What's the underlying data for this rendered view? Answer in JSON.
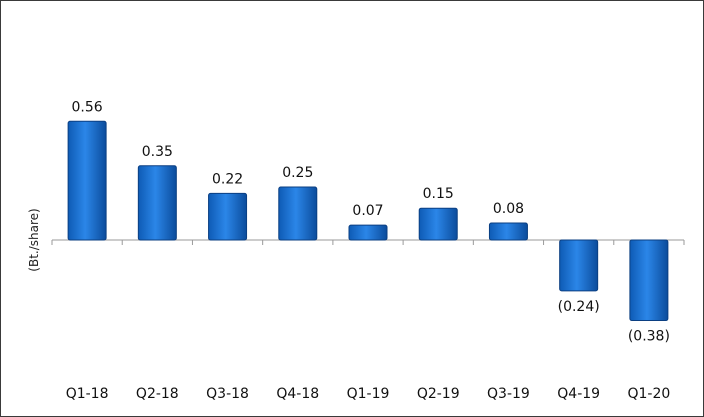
{
  "chart_data": {
    "type": "bar",
    "ylabel": "(Bt./share)",
    "categories": [
      "Q1-18",
      "Q2-18",
      "Q3-18",
      "Q4-18",
      "Q1-19",
      "Q2-19",
      "Q3-19",
      "Q4-19",
      "Q1-20"
    ],
    "values": [
      0.56,
      0.35,
      0.22,
      0.25,
      0.07,
      0.15,
      0.08,
      -0.24,
      -0.38
    ],
    "data_labels": [
      "0.56",
      "0.35",
      "0.22",
      "0.25",
      "0.07",
      "0.15",
      "0.08",
      "(0.24)",
      "(0.38)"
    ],
    "ylim": [
      -0.45,
      0.6
    ],
    "grid": false,
    "legend": "none",
    "bar_color": "#1a6fcf",
    "bar_edge_color": "#0b3f82"
  }
}
